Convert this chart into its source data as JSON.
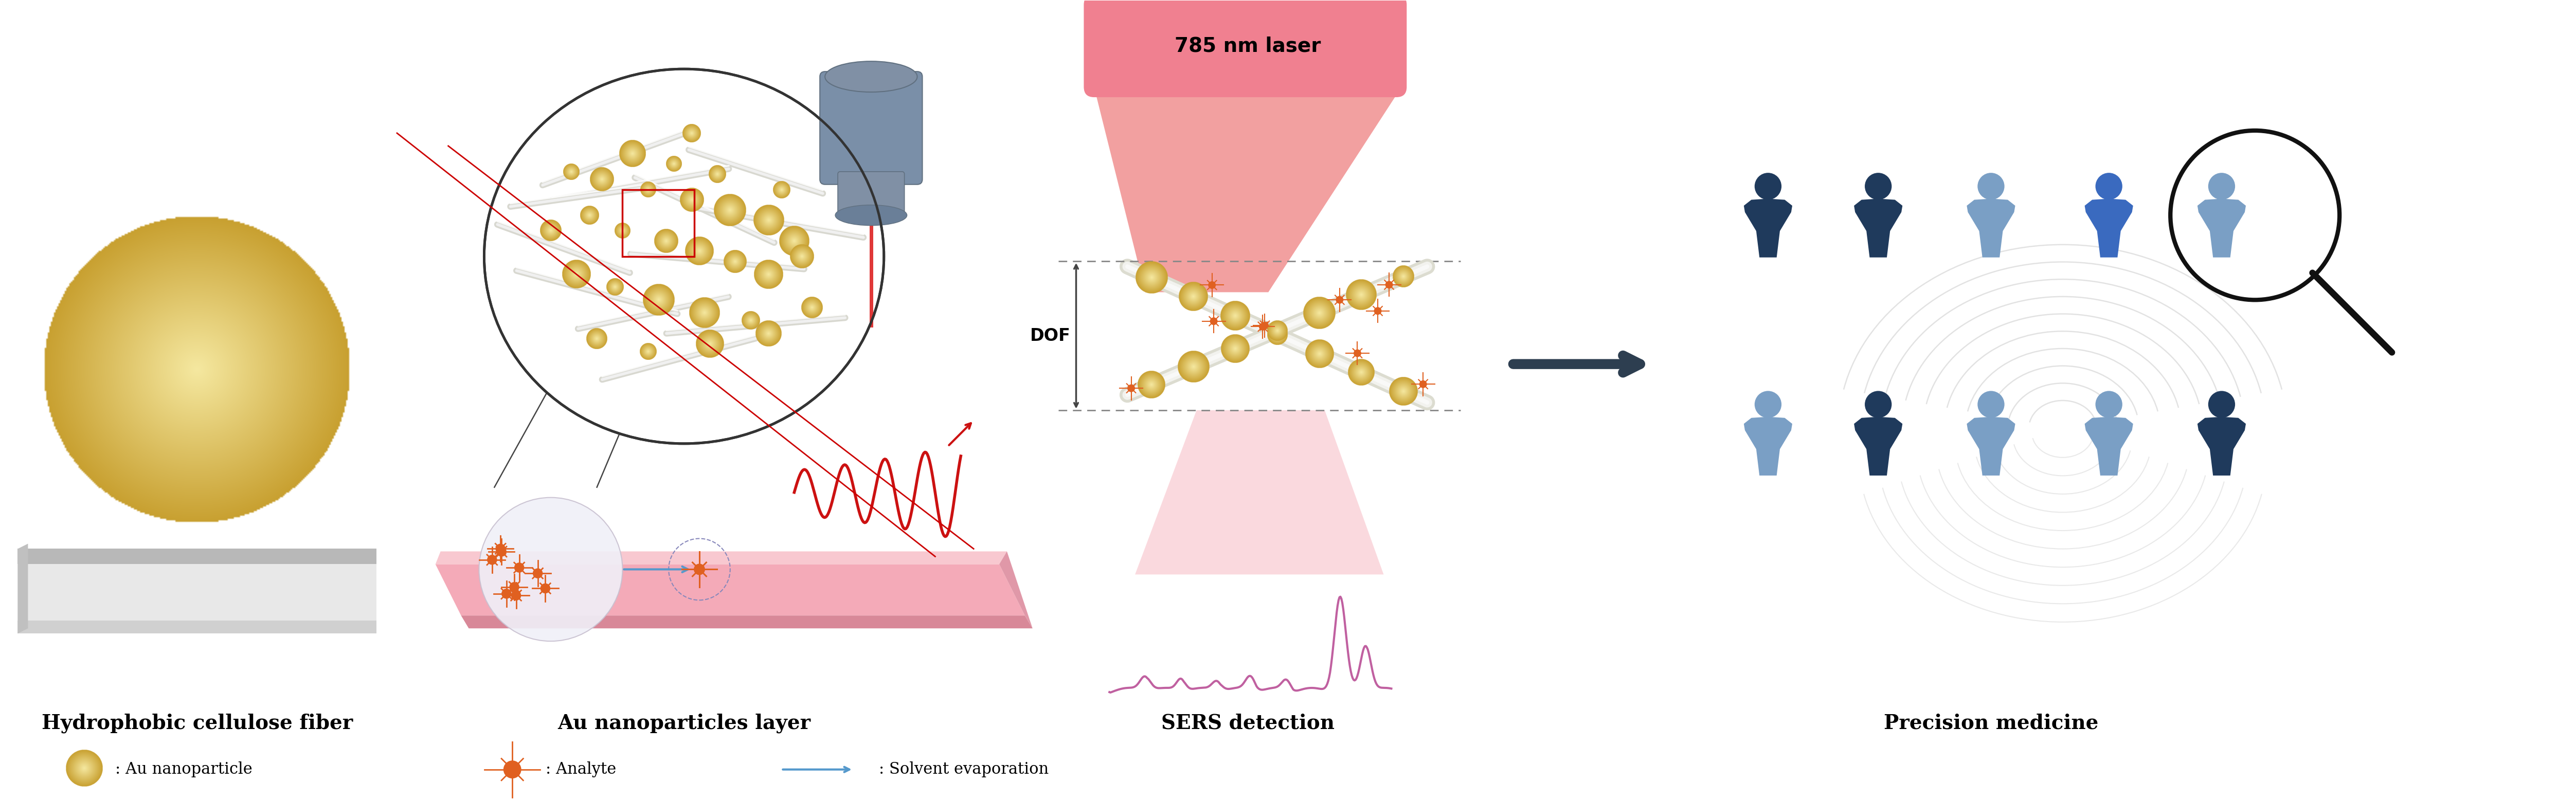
{
  "bg_color": "#ffffff",
  "label_hydrophobic": "Hydrophobic cellulose fiber",
  "label_au": "Au nanoparticles layer",
  "label_sers": "SERS detection",
  "label_precision": "Precision medicine",
  "label_laser": "785 nm laser",
  "label_dof": "DOF",
  "legend_nanoparticle": ": Au nanoparticle",
  "legend_analyte": ": Analyte",
  "legend_solvent": ": Solvent evaporation",
  "dark_blue": "#1f3a5c",
  "mid_blue": "#2e6aa3",
  "light_blue": "#7a9fc5",
  "gold_color": "#d4b855",
  "gold_dark": "#b09030",
  "gold_light": "#eedc90",
  "pink_color": "#e87ca0",
  "pink_light": "#f8c8d0",
  "pink_cone": "#f09090",
  "orange_color": "#e06020",
  "red_color": "#cc1111",
  "gray_color": "#999999",
  "light_gray": "#cccccc",
  "arrow_color": "#2d3e50",
  "fiber_color": "#e8e8e8",
  "fiber_edge": "#cccccc"
}
